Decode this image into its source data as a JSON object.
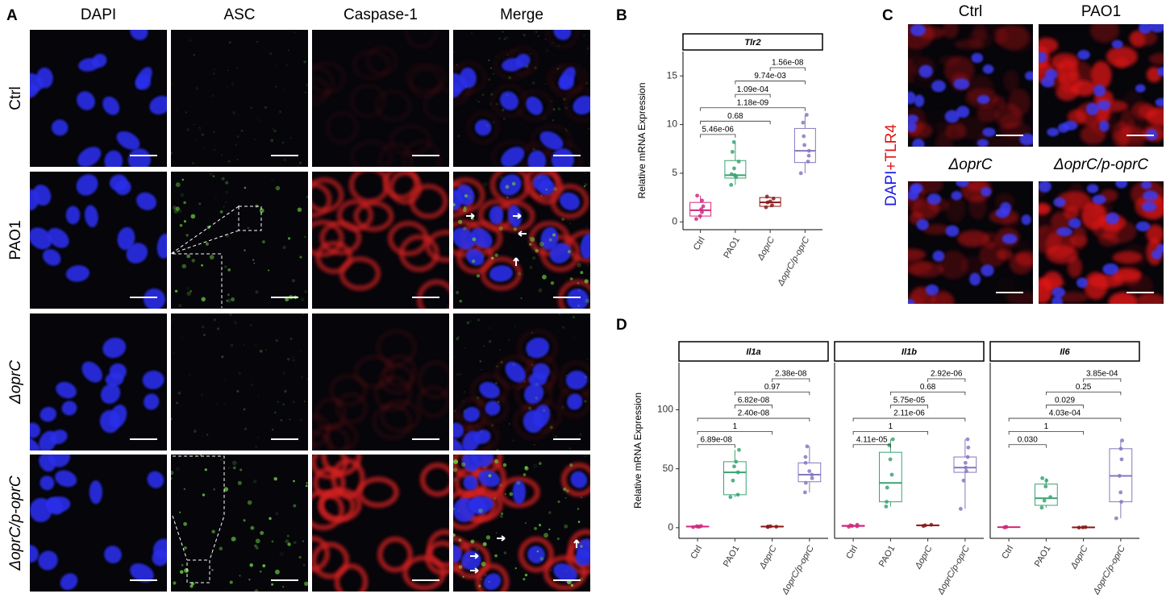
{
  "panel_a": {
    "letter": "A",
    "columns": [
      "DAPI",
      "ASC",
      "Caspase-1",
      "Merge"
    ],
    "rows": [
      "Ctrl",
      "PAO1",
      "ΔoprC",
      "ΔoprC/p-oprC"
    ]
  },
  "panel_b": {
    "letter": "B"
  },
  "panel_c": {
    "letter": "C",
    "columns": [
      "Ctrl",
      "PAO1"
    ],
    "row2": [
      "ΔoprC",
      "ΔoprC/p-oprC"
    ],
    "side_label": [
      "DAPI",
      "+TLR4"
    ]
  },
  "panel_d": {
    "letter": "D"
  },
  "chart_data": [
    {
      "type": "box",
      "strip": "Tlr2",
      "ylabel": "Relative mRNA Expression",
      "categories": [
        "Ctrl",
        "PAO1",
        "ΔoprC",
        "ΔoprC/p-oprC"
      ],
      "ylim": [
        -0.8,
        17.5
      ],
      "yticks": [
        0,
        5,
        10,
        15
      ],
      "boxes": [
        {
          "color": "#d1287e",
          "min": 0.3,
          "q1": 0.6,
          "median": 1.2,
          "q3": 2.0,
          "max": 2.7,
          "points": [
            0.3,
            0.6,
            1.0,
            1.3,
            1.6,
            2.2,
            2.7
          ]
        },
        {
          "color": "#3aa372",
          "min": 3.8,
          "q1": 4.5,
          "median": 4.8,
          "q3": 6.3,
          "max": 8.2,
          "points": [
            3.8,
            4.6,
            4.8,
            4.9,
            5.5,
            6.2,
            7.2,
            8.2
          ]
        },
        {
          "color": "#8b1a1a",
          "min": 1.5,
          "q1": 1.6,
          "median": 2.0,
          "q3": 2.5,
          "max": 2.6,
          "points": [
            1.5,
            1.7,
            2.0,
            2.1,
            2.4,
            2.6
          ]
        },
        {
          "color": "#8877c0",
          "min": 5.0,
          "q1": 6.1,
          "median": 7.3,
          "q3": 9.6,
          "max": 11.0,
          "points": [
            5.0,
            6.2,
            6.8,
            7.3,
            7.9,
            8.8,
            10.2,
            11.0
          ]
        }
      ],
      "comparisons": [
        "5.46e-06",
        "0.68",
        "1.18e-09",
        "1.09e-04",
        "9.74e-03",
        "1.56e-08"
      ]
    },
    {
      "type": "box",
      "strip": "Il1a",
      "ylabel": "Relative mRNA Expression",
      "categories": [
        "Ctrl",
        "PAO1",
        "ΔoprC",
        "ΔoprC/p-oprC"
      ],
      "ylim": [
        -9,
        140
      ],
      "yticks": [
        0,
        50,
        100
      ],
      "boxes": [
        {
          "color": "#d1287e",
          "min": 0.5,
          "q1": 0.8,
          "median": 1,
          "q3": 1.2,
          "max": 1.5,
          "points": [
            0.5,
            0.8,
            1,
            1.2,
            1.5
          ]
        },
        {
          "color": "#3aa372",
          "min": 26,
          "q1": 28,
          "median": 47,
          "q3": 56,
          "max": 66,
          "points": [
            26,
            28,
            40,
            47,
            52,
            56,
            66
          ]
        },
        {
          "color": "#8b1a1a",
          "min": 0.6,
          "q1": 0.9,
          "median": 1,
          "q3": 1.1,
          "max": 1.2,
          "points": [
            0.6,
            0.9,
            1,
            1.2
          ]
        },
        {
          "color": "#8877c0",
          "min": 30,
          "q1": 39,
          "median": 45,
          "q3": 55,
          "max": 69,
          "points": [
            30,
            38,
            42,
            45,
            48,
            55,
            60,
            69
          ]
        }
      ],
      "comparisons": [
        "6.89e-08",
        "1",
        "2.40e-08",
        "6.82e-08",
        "0.97",
        "2.38e-08"
      ]
    },
    {
      "type": "box",
      "strip": "Il1b",
      "categories": [
        "Ctrl",
        "PAO1",
        "ΔoprC",
        "ΔoprC/p-oprC"
      ],
      "ylim": [
        -9,
        140
      ],
      "boxes": [
        {
          "color": "#d1287e",
          "min": 0.8,
          "q1": 1.2,
          "median": 1.5,
          "q3": 2,
          "max": 2.5,
          "points": [
            0.8,
            1.2,
            1.5,
            2,
            2.5
          ]
        },
        {
          "color": "#3aa372",
          "min": 18,
          "q1": 22,
          "median": 38,
          "q3": 64,
          "max": 75,
          "points": [
            18,
            22,
            34,
            45,
            58,
            70,
            75
          ]
        },
        {
          "color": "#8b1a1a",
          "min": 1.5,
          "q1": 1.8,
          "median": 2,
          "q3": 2.3,
          "max": 2.5,
          "points": [
            1.5,
            2,
            2.5
          ]
        },
        {
          "color": "#8877c0",
          "min": 16,
          "q1": 47,
          "median": 51,
          "q3": 60,
          "max": 75,
          "points": [
            16,
            40,
            48,
            51,
            55,
            60,
            68,
            75
          ]
        }
      ],
      "comparisons": [
        "4.11e-05",
        "1",
        "2.11e-06",
        "5.75e-05",
        "0.68",
        "2.92e-06"
      ]
    },
    {
      "type": "box",
      "strip": "Il6",
      "categories": [
        "Ctrl",
        "PAO1",
        "ΔoprC",
        "ΔoprC/p-oprC"
      ],
      "ylim": [
        -9,
        140
      ],
      "boxes": [
        {
          "color": "#d1287e",
          "min": 0.3,
          "q1": 0.4,
          "median": 0.5,
          "q3": 0.6,
          "max": 0.7,
          "points": [
            0.3,
            0.5,
            0.7
          ]
        },
        {
          "color": "#3aa372",
          "min": 17,
          "q1": 19,
          "median": 25,
          "q3": 37,
          "max": 42,
          "points": [
            17,
            23,
            26,
            35,
            40,
            42
          ]
        },
        {
          "color": "#8b1a1a",
          "min": 0.1,
          "q1": 0.2,
          "median": 0.3,
          "q3": 0.4,
          "max": 0.5,
          "points": [
            0.1,
            0.3,
            0.5
          ]
        },
        {
          "color": "#8877c0",
          "min": 8,
          "q1": 22,
          "median": 44,
          "q3": 67,
          "max": 74,
          "points": [
            8,
            22,
            30,
            44,
            58,
            67,
            74
          ]
        }
      ],
      "comparisons": [
        "0.030",
        "1",
        "4.03e-04",
        "0.029",
        "0.25",
        "3.85e-04"
      ]
    }
  ]
}
